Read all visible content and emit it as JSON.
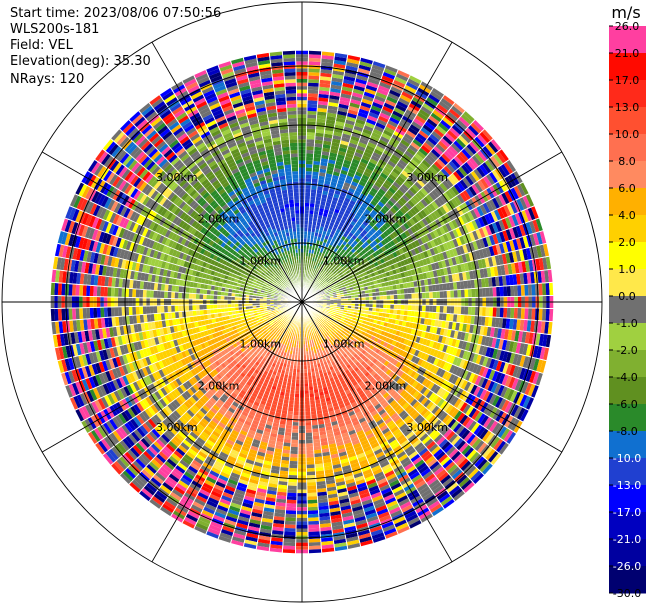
{
  "header": {
    "start_time": "Start time: 2023/08/06 07:50:56",
    "device": "WLS200s-181",
    "field": "Field: VEL",
    "elevation": "Elevation(deg): 35.30",
    "nrays": "NRays: 120"
  },
  "colorbar": {
    "unit": "m/s",
    "ticks": [
      "26.0",
      "21.0",
      "17.0",
      "13.0",
      "10.0",
      "8.0",
      "6.0",
      "4.0",
      "2.0",
      "1.0",
      "0.0",
      "-1.0",
      "-2.0",
      "-4.0",
      "-6.0",
      "-8.0",
      "-10.0",
      "-13.0",
      "-17.0",
      "-21.0",
      "-26.0",
      "-30.0"
    ],
    "colors": [
      "#ff3fa0",
      "#ff0a00",
      "#ff2a1a",
      "#ff5030",
      "#ff7050",
      "#ff8a60",
      "#ffb000",
      "#ffd000",
      "#ffff00",
      "#ffe84a",
      "#707070",
      "#a0d040",
      "#80b030",
      "#609020",
      "#2a8a2a",
      "#1070d0",
      "#2040d0",
      "#0000ff",
      "#0000c0",
      "#0000a0",
      "#000070"
    ]
  },
  "chart_data": {
    "type": "ppi",
    "field": "VEL",
    "units": "m/s",
    "nrays": 120,
    "range_ring_labels": [
      "1.00km",
      "2.00km",
      "3.00km"
    ],
    "range_rings_km": [
      1,
      2,
      3
    ],
    "max_range_km": 4.3,
    "velocity_pattern": {
      "toward_sector_center_azimuth_deg": 0,
      "away_sector_center_azimuth_deg": 180,
      "peak_speed_ms": 13
    }
  }
}
